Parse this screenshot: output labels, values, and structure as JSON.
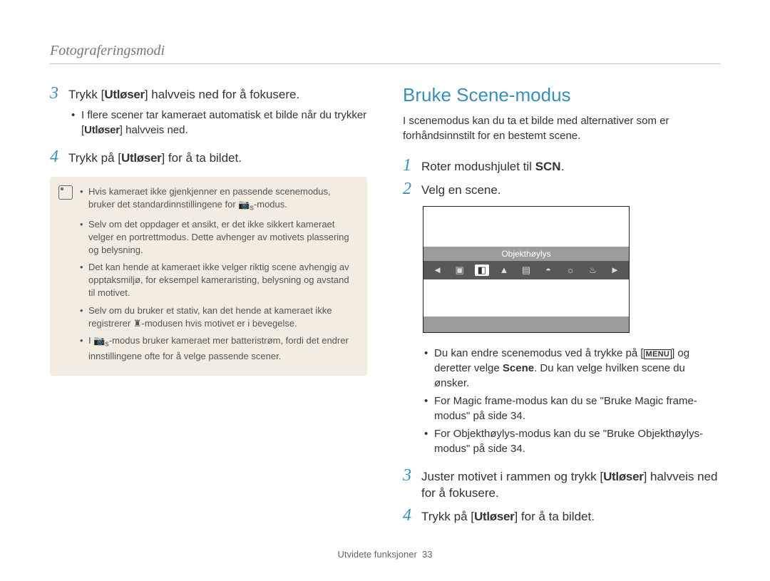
{
  "header": "Fotograferingsmodi",
  "left": {
    "step3_num": "3",
    "step3_pre": "Trykk [",
    "step3_bold": "Utløser",
    "step3_post": "] halvveis ned for å fokusere.",
    "step3_sub_pre": "I flere scener tar kameraet automatisk et bilde når du trykker [",
    "step3_sub_bold": "Utløser",
    "step3_sub_post": "] halvveis ned.",
    "step4_num": "4",
    "step4_pre": "Trykk på [",
    "step4_bold": "Utløser",
    "step4_post": "] for å ta bildet.",
    "notes": {
      "n1_a": "Hvis kameraet ikke gjenkjenner en passende scenemodus, bruker det standardinnstillingene for ",
      "n1_b": "-modus.",
      "n2": "Selv om det oppdager et ansikt, er det ikke sikkert kameraet velger en portrettmodus. Dette avhenger av motivets plassering og belysning.",
      "n3": "Det kan hende at kameraet ikke velger riktig scene avhengig av opptaksmiljø, for eksempel kameraristing, belysning og avstand til motivet.",
      "n4_a": "Selv om du bruker et stativ, kan det hende at kameraet ikke registrerer ",
      "n4_b": "-modusen hvis motivet er i bevegelse.",
      "n5_a": "I ",
      "n5_b": "-modus bruker kameraet mer batteristrøm, fordi det endrer innstillingene ofte for å velge passende scener."
    }
  },
  "right": {
    "title": "Bruke Scene-modus",
    "intro": "I scenemodus kan du ta et bilde med alternativer som er forhåndsinnstilt for en bestemt scene.",
    "step1_num": "1",
    "step1_pre": "Roter modushjulet til ",
    "step1_scn": "SCN",
    "step1_post": ".",
    "step2_num": "2",
    "step2_text": "Velg en scene.",
    "scene_label": "Objekthøylys",
    "bullets": {
      "b1_a": "Du kan endre scenemodus ved å trykke på [",
      "b1_menu": "MENU",
      "b1_b": "] og deretter velge ",
      "b1_bold": "Scene",
      "b1_c": ". Du kan velge hvilken scene du ønsker.",
      "b2": "For Magic frame-modus kan du se \"Bruke Magic frame-modus\" på side 34.",
      "b3": "For Objekthøylys-modus kan du se \"Bruke Objekthøylys-modus\" på side 34."
    },
    "step3_num": "3",
    "step3_pre": "Juster motivet i rammen og trykk [",
    "step3_bold": "Utløser",
    "step3_post": "] halvveis ned for å fokusere.",
    "step4_num": "4",
    "step4_pre": "Trykk på [",
    "step4_bold": "Utløser",
    "step4_post": "] for å ta bildet."
  },
  "footer_label": "Utvidete funksjoner",
  "footer_page": "33",
  "colors": {
    "accent": "#3a8fb7",
    "note_bg": "#f3ece0"
  }
}
